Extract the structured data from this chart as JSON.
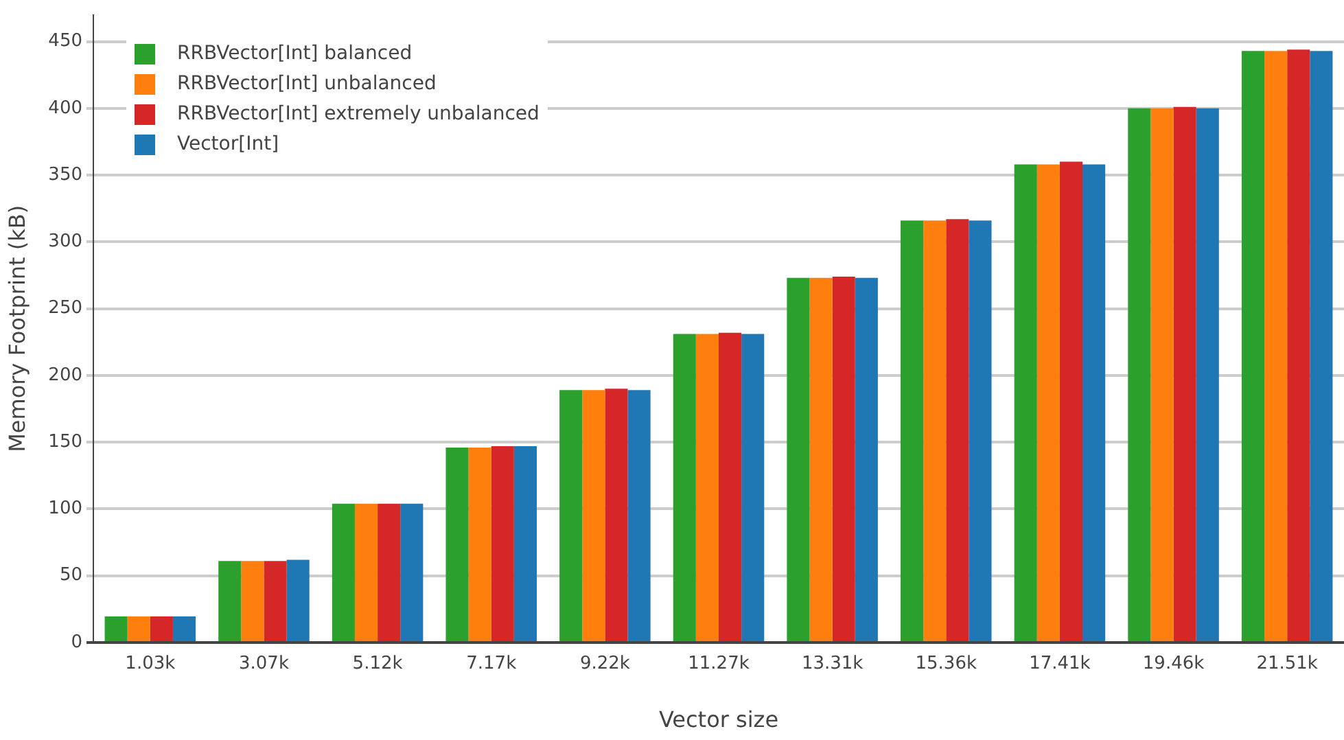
{
  "chart_data": {
    "type": "bar",
    "xlabel": "Vector size",
    "ylabel": "Memory Footprint (kB)",
    "categories": [
      "1.03k",
      "3.07k",
      "5.12k",
      "7.17k",
      "9.22k",
      "11.27k",
      "13.31k",
      "15.36k",
      "17.41k",
      "19.46k",
      "21.51k"
    ],
    "series": [
      {
        "name": "RRBVector[Int] balanced",
        "color": "#2ca02c",
        "values": [
          19.5,
          61,
          104,
          146,
          189,
          231,
          273,
          316,
          358,
          400,
          443
        ]
      },
      {
        "name": "RRBVector[Int] unbalanced",
        "color": "#ff7f0e",
        "values": [
          19.5,
          61,
          104,
          146,
          189,
          231,
          273,
          316,
          358,
          400,
          443
        ]
      },
      {
        "name": "RRBVector[Int] extremely unbalanced",
        "color": "#d62728",
        "values": [
          19.5,
          61,
          104,
          147,
          190,
          232,
          274,
          317,
          360,
          401,
          444
        ]
      },
      {
        "name": "Vector[Int]",
        "color": "#1f77b4",
        "values": [
          19.5,
          62,
          104,
          147,
          189,
          231,
          273,
          316,
          358,
          400,
          443
        ]
      }
    ],
    "ylim": [
      0,
      470
    ],
    "yticks": [
      0,
      50,
      100,
      150,
      200,
      250,
      300,
      350,
      400,
      450
    ],
    "grid": "y",
    "legend": "top left"
  }
}
